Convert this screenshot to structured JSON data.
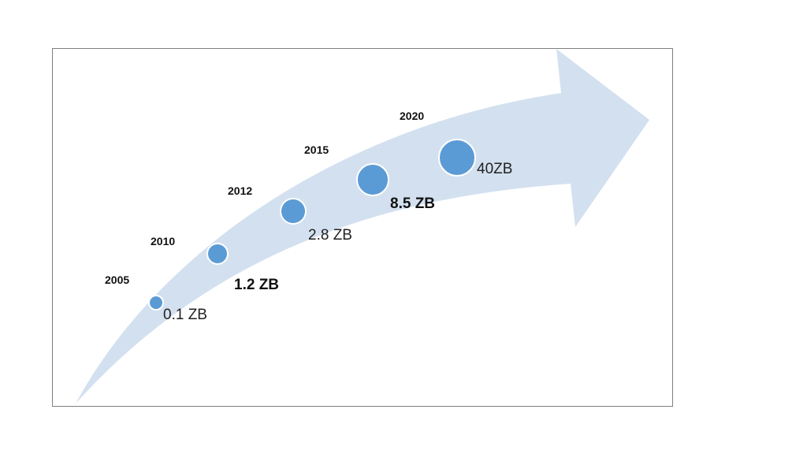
{
  "diagram": {
    "colors": {
      "arrow": "#d3e0ef",
      "bubble": "#5b9bd5",
      "frame": "#7f7f7f"
    },
    "milestones": [
      {
        "year": "2005",
        "value_label": "0.1 ZB",
        "value_zb": 0.1,
        "bold": false
      },
      {
        "year": "2010",
        "value_label": "1.2 ZB",
        "value_zb": 1.2,
        "bold": true
      },
      {
        "year": "2012",
        "value_label": "2.8 ZB",
        "value_zb": 2.8,
        "bold": false
      },
      {
        "year": "2015",
        "value_label": "8.5 ZB",
        "value_zb": 8.5,
        "bold": true
      },
      {
        "year": "2020",
        "value_label": "40ZB",
        "value_zb": 40,
        "bold": false
      }
    ]
  }
}
